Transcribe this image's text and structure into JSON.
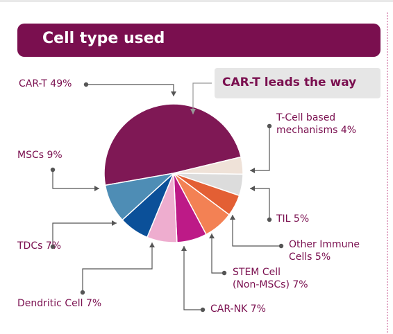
{
  "header": {
    "title": "Cell type used"
  },
  "callout": {
    "text": "CAR-T leads the way"
  },
  "colors": {
    "brand": "#7a0f4f",
    "leader": "#555555",
    "callout_bg": "#e6e6e6"
  },
  "chart_data": {
    "type": "pie",
    "title": "Cell type used",
    "unit": "%",
    "slices": [
      {
        "name": "CAR-T",
        "value": 49,
        "color": "#7f1855",
        "label_lines": [
          "CAR-T 49%"
        ]
      },
      {
        "name": "T-Cell based mechanisms",
        "value": 4,
        "color": "#efe2d8",
        "label_lines": [
          "T-Cell based",
          "mechanisms 4%"
        ]
      },
      {
        "name": "TIL",
        "value": 5,
        "color": "#dcdcdc",
        "label_lines": [
          "TIL 5%"
        ]
      },
      {
        "name": "Other Immune Cells",
        "value": 5,
        "color": "#e35f34",
        "label_lines": [
          "Other Immune",
          "Cells 5%"
        ]
      },
      {
        "name": "STEM Cell (Non-MSCs)",
        "value": 7,
        "color": "#f38154",
        "label_lines": [
          "STEM Cell",
          "(Non-MSCs) 7%"
        ]
      },
      {
        "name": "CAR-NK",
        "value": 7,
        "color": "#bd1a87",
        "label_lines": [
          "CAR-NK 7%"
        ]
      },
      {
        "name": "Dendritic Cell",
        "value": 7,
        "color": "#eeadcf",
        "label_lines": [
          "Dendritic Cell 7%"
        ]
      },
      {
        "name": "TDCs",
        "value": 7,
        "color": "#0b5099",
        "label_lines": [
          "TDCs 7%"
        ]
      },
      {
        "name": "MSCs",
        "value": 9,
        "color": "#4e8db5",
        "label_lines": [
          "MSCs 9%"
        ]
      }
    ]
  }
}
